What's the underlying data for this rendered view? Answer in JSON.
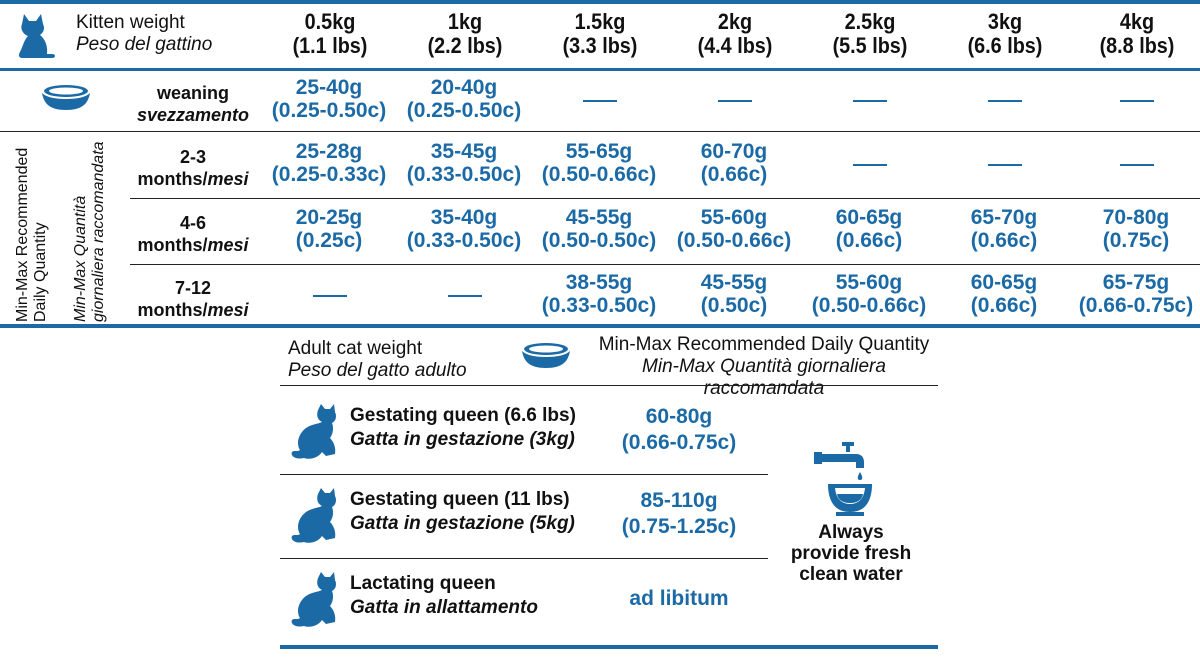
{
  "header": {
    "label_en": "Kitten weight",
    "label_it": "Peso del gattino",
    "weights": [
      {
        "kg": "0.5kg",
        "lbs": "(1.1 lbs)"
      },
      {
        "kg": "1kg",
        "lbs": "(2.2 lbs)"
      },
      {
        "kg": "1.5kg",
        "lbs": "(3.3 lbs)"
      },
      {
        "kg": "2kg",
        "lbs": "(4.4 lbs)"
      },
      {
        "kg": "2.5kg",
        "lbs": "(5.5 lbs)"
      },
      {
        "kg": "3kg",
        "lbs": "(6.6 lbs)"
      },
      {
        "kg": "4kg",
        "lbs": "(8.8 lbs)"
      }
    ]
  },
  "side_labels": {
    "en_line1": "Min-Max Recommended",
    "en_line2": "Daily Quantity",
    "it_line1": "Min-Max Quantità",
    "it_line2": "giornaliera raccomandata"
  },
  "rows": [
    {
      "age_top": "weaning",
      "age_bottom": "svezzamento",
      "cells": [
        {
          "g": "25-40g",
          "c": "(0.25-0.50c)"
        },
        {
          "g": "20-40g",
          "c": "(0.25-0.50c)"
        },
        null,
        null,
        null,
        null,
        null
      ]
    },
    {
      "age_top": "2-3",
      "age_bottom_en": "months/",
      "age_bottom_it": "mesi",
      "cells": [
        {
          "g": "25-28g",
          "c": "(0.25-0.33c)"
        },
        {
          "g": "35-45g",
          "c": "(0.33-0.50c)"
        },
        {
          "g": "55-65g",
          "c": "(0.50-0.66c)"
        },
        {
          "g": "60-70g",
          "c": "(0.66c)"
        },
        null,
        null,
        null
      ]
    },
    {
      "age_top": "4-6",
      "age_bottom_en": "months/",
      "age_bottom_it": "mesi",
      "cells": [
        {
          "g": "20-25g",
          "c": "(0.25c)"
        },
        {
          "g": "35-40g",
          "c": "(0.33-0.50c)"
        },
        {
          "g": "45-55g",
          "c": "(0.50-0.50c)"
        },
        {
          "g": "55-60g",
          "c": "(0.50-0.66c)"
        },
        {
          "g": "60-65g",
          "c": "(0.66c)"
        },
        {
          "g": "65-70g",
          "c": "(0.66c)"
        },
        {
          "g": "70-80g",
          "c": "(0.75c)"
        }
      ]
    },
    {
      "age_top": "7-12",
      "age_bottom_en": "months/",
      "age_bottom_it": "mesi",
      "cells": [
        null,
        null,
        {
          "g": "38-55g",
          "c": "(0.33-0.50c)"
        },
        {
          "g": "45-55g",
          "c": "(0.50c)"
        },
        {
          "g": "55-60g",
          "c": "(0.50-0.66c)"
        },
        {
          "g": "60-65g",
          "c": "(0.66c)"
        },
        {
          "g": "65-75g",
          "c": "(0.66-0.75c)"
        }
      ]
    }
  ],
  "adult": {
    "label_en": "Adult cat weight",
    "label_it": "Peso del gatto adulto",
    "qty_en": "Min-Max Recommended Daily Quantity",
    "qty_it": "Min-Max Quantità giornaliera raccomandata",
    "queens": [
      {
        "name": "Gestating queen (6.6 lbs)",
        "sub": "Gatta in gestazione (3kg)",
        "v1": "60-80g",
        "v2": "(0.66-0.75c)"
      },
      {
        "name": "Gestating queen (11 lbs)",
        "sub": "Gatta in gestazione (5kg)",
        "v1": "85-110g",
        "v2": "(0.75-1.25c)"
      },
      {
        "name": "Lactating queen",
        "sub": "Gatta in allattamento",
        "v1": "ad libitum",
        "v2": ""
      }
    ],
    "water": {
      "line1": "Always",
      "line2": "provide fresh",
      "line3": "clean water"
    }
  },
  "colors": {
    "accent": "#1b6aa6",
    "text": "#111111"
  },
  "icons": [
    "cat-icon",
    "food-bowl-icon",
    "water-tap-icon"
  ]
}
